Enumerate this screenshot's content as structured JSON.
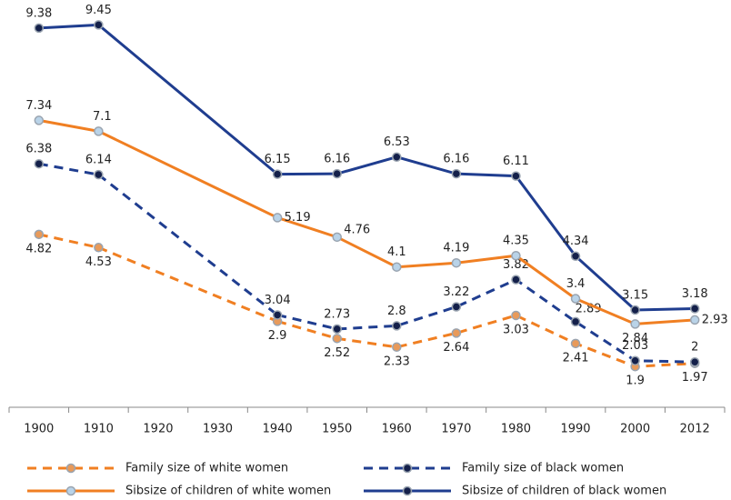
{
  "chart_data": {
    "type": "line",
    "categories": [
      "1900",
      "1910",
      "1920",
      "1930",
      "1940",
      "1950",
      "1960",
      "1970",
      "1980",
      "1990",
      "2000",
      "2012"
    ],
    "ylim": [
      1,
      10
    ],
    "series": [
      {
        "name": "Family size of white women",
        "color": "#f07f22",
        "marker_color": "#e89a5a",
        "dashed": true,
        "values": [
          4.82,
          4.53,
          null,
          null,
          2.9,
          2.52,
          2.33,
          2.64,
          3.03,
          2.41,
          1.9,
          1.97
        ]
      },
      {
        "name": "Family size of black women",
        "color": "#1f3d8f",
        "marker_color": "#14204a",
        "dashed": true,
        "values": [
          6.38,
          6.14,
          null,
          null,
          3.04,
          2.73,
          2.8,
          3.22,
          3.82,
          2.89,
          2.03,
          2.0
        ]
      },
      {
        "name": "Sibsize of children of white women",
        "color": "#f07f22",
        "marker_color": "#b9d3e8",
        "dashed": false,
        "values": [
          7.34,
          7.1,
          null,
          null,
          5.19,
          4.76,
          4.1,
          4.19,
          4.35,
          3.4,
          2.84,
          2.93
        ]
      },
      {
        "name": "Sibsize of children of black women",
        "color": "#1f3d8f",
        "marker_color": "#14204a",
        "dashed": false,
        "values": [
          9.38,
          9.45,
          null,
          null,
          6.15,
          6.16,
          6.53,
          6.16,
          6.11,
          4.34,
          3.15,
          3.18
        ]
      }
    ]
  }
}
